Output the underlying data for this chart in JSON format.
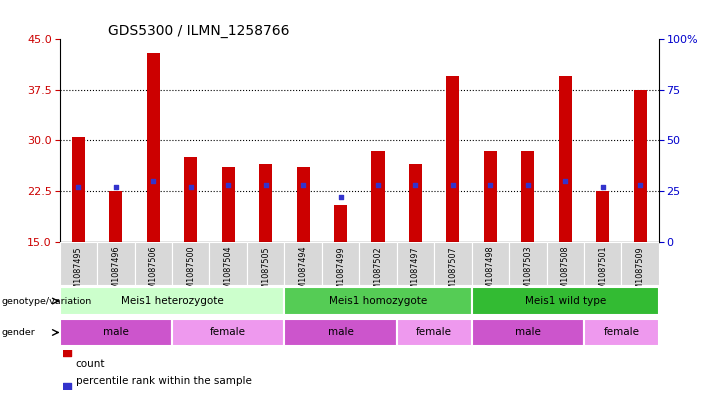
{
  "title": "GDS5300 / ILMN_1258766",
  "samples": [
    "GSM1087495",
    "GSM1087496",
    "GSM1087506",
    "GSM1087500",
    "GSM1087504",
    "GSM1087505",
    "GSM1087494",
    "GSM1087499",
    "GSM1087502",
    "GSM1087497",
    "GSM1087507",
    "GSM1087498",
    "GSM1087503",
    "GSM1087508",
    "GSM1087501",
    "GSM1087509"
  ],
  "counts": [
    30.5,
    22.5,
    43.0,
    27.5,
    26.0,
    26.5,
    26.0,
    20.5,
    28.5,
    26.5,
    39.5,
    28.5,
    28.5,
    39.5,
    22.5,
    37.5
  ],
  "percentiles": [
    27,
    27,
    30,
    27,
    28,
    28,
    28,
    22,
    28,
    28,
    28,
    28,
    28,
    30,
    27,
    28
  ],
  "ylim_left": [
    15,
    45
  ],
  "ylim_right": [
    0,
    100
  ],
  "yticks_left": [
    15,
    22.5,
    30,
    37.5,
    45
  ],
  "yticks_right": [
    0,
    25,
    50,
    75,
    100
  ],
  "bar_color": "#cc0000",
  "dot_color": "#3333cc",
  "bar_width": 0.35,
  "genotype_groups": [
    {
      "label": "Meis1 heterozygote",
      "start": 0,
      "end": 5,
      "color": "#ccffcc"
    },
    {
      "label": "Meis1 homozygote",
      "start": 6,
      "end": 10,
      "color": "#55cc55"
    },
    {
      "label": "Meis1 wild type",
      "start": 11,
      "end": 15,
      "color": "#33bb33"
    }
  ],
  "gender_groups": [
    {
      "label": "male",
      "start": 0,
      "end": 2,
      "color": "#dd66dd"
    },
    {
      "label": "female",
      "start": 3,
      "end": 5,
      "color": "#ee99ee"
    },
    {
      "label": "male",
      "start": 6,
      "end": 8,
      "color": "#dd66dd"
    },
    {
      "label": "female",
      "start": 9,
      "end": 10,
      "color": "#ee99ee"
    },
    {
      "label": "male",
      "start": 11,
      "end": 13,
      "color": "#dd66dd"
    },
    {
      "label": "female",
      "start": 14,
      "end": 15,
      "color": "#ee99ee"
    }
  ],
  "tick_color_left": "#cc0000",
  "tick_color_right": "#0000cc",
  "xtick_bg": "#d8d8d8"
}
